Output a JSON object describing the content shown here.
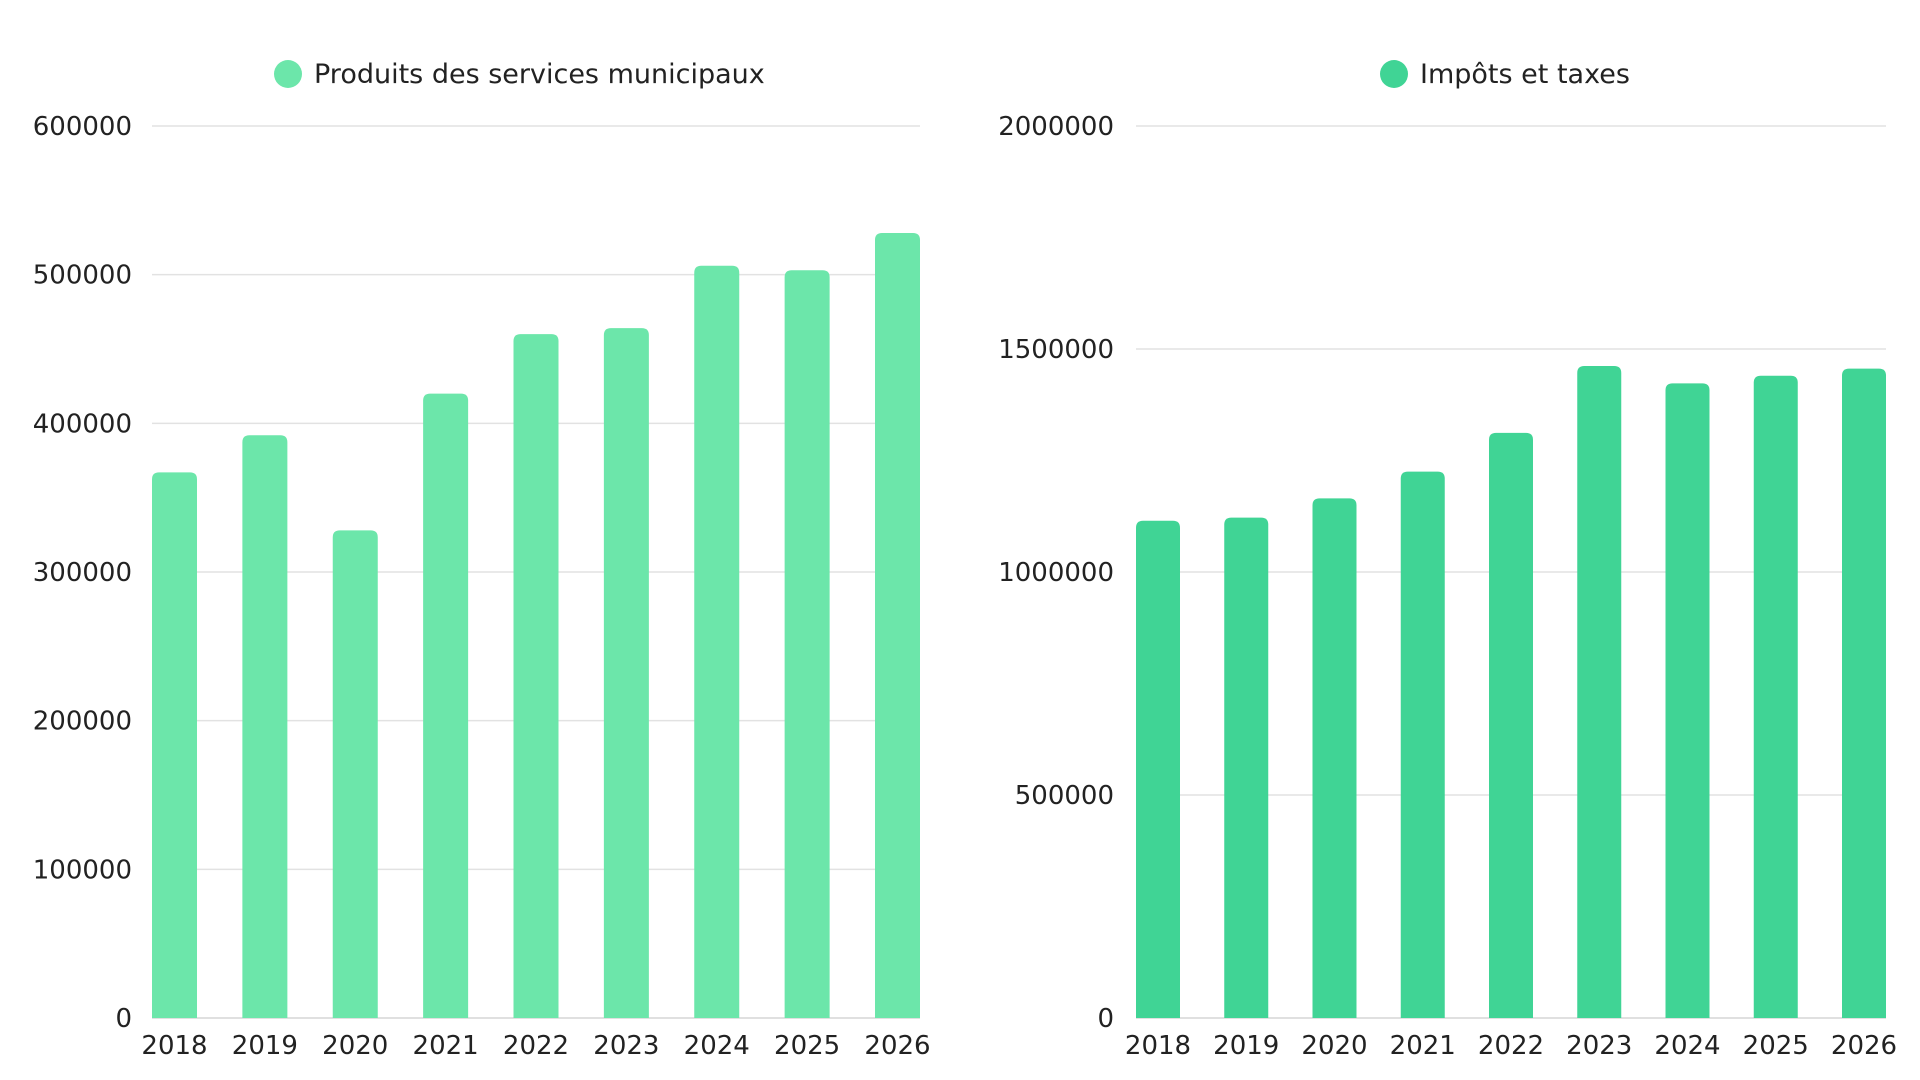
{
  "chart_data": [
    {
      "type": "bar",
      "categories": [
        "2018",
        "2019",
        "2020",
        "2021",
        "2022",
        "2023",
        "2024",
        "2025",
        "2026"
      ],
      "series": [
        {
          "name": "Produits des services municipaux",
          "color": "#6ce6aa",
          "values": [
            367000,
            392000,
            328000,
            420000,
            460000,
            464000,
            506000,
            503000,
            528000
          ]
        }
      ],
      "y_ticks": [
        "0",
        "100000",
        "200000",
        "300000",
        "400000",
        "500000",
        "600000"
      ],
      "ylim": [
        0,
        600000
      ],
      "legend_position": "top-center",
      "grid": true
    },
    {
      "type": "bar",
      "categories": [
        "2018",
        "2019",
        "2020",
        "2021",
        "2022",
        "2023",
        "2024",
        "2025",
        "2026"
      ],
      "series": [
        {
          "name": "Impôts et taxes",
          "color": "#40d495",
          "values": [
            1115000,
            1122000,
            1165000,
            1225000,
            1312000,
            1462000,
            1423000,
            1440000,
            1456000
          ]
        }
      ],
      "y_ticks": [
        "0",
        "500000",
        "1000000",
        "1500000",
        "2000000"
      ],
      "ylim": [
        0,
        2000000
      ],
      "legend_position": "top-center",
      "grid": true
    }
  ]
}
